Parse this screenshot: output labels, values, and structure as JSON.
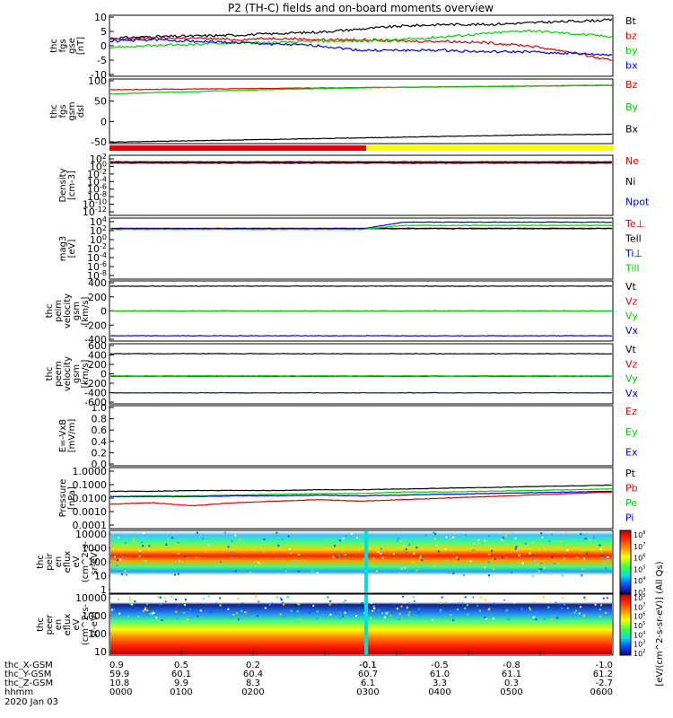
{
  "title": "P2 (TH-C) fields and on-board moments overview",
  "colors": {
    "black": "#000000",
    "red": "#e00000",
    "green": "#00d000",
    "blue": "#0000e0",
    "yellow": "#ffff00"
  },
  "chart_data": [
    {
      "type": "line",
      "ylabel": [
        "thc",
        "fgs",
        "gse",
        "[nT]"
      ],
      "ylim": [
        -10,
        10
      ],
      "yticks": [
        "-10",
        "-5",
        "0",
        "5",
        "10"
      ],
      "series": [
        {
          "name": "Bt",
          "color": "black",
          "values": [
            2.5,
            3.0,
            3.2,
            3.5,
            4.0,
            4.5,
            5.5,
            6.5,
            7.0,
            7.0,
            7.5,
            8.0,
            8.5
          ]
        },
        {
          "name": "bz",
          "color": "red",
          "values": [
            2.0,
            2.5,
            2.5,
            2.0,
            2.5,
            2.0,
            2.0,
            1.5,
            1.5,
            1.0,
            0.0,
            -2.0,
            -5.0
          ]
        },
        {
          "name": "by",
          "color": "green",
          "values": [
            -0.5,
            0.0,
            0.5,
            1.0,
            1.0,
            1.5,
            1.5,
            2.0,
            3.0,
            4.0,
            5.0,
            4.0,
            3.0
          ]
        },
        {
          "name": "bx",
          "color": "blue",
          "values": [
            1.5,
            2.0,
            1.5,
            1.0,
            0.5,
            0.0,
            -1.5,
            -1.5,
            -1.5,
            -2.0,
            -2.0,
            -2.5,
            -3.0
          ]
        }
      ]
    },
    {
      "type": "line",
      "ylabel": [
        "thc",
        "fgs",
        "gsm",
        "dsl"
      ],
      "ylim": [
        -70,
        110
      ],
      "yticks": [
        "-50",
        "0",
        "50",
        "100"
      ],
      "series": [
        {
          "name": "Bz",
          "color": "red",
          "values": [
            80,
            81,
            82,
            83,
            84,
            85,
            86,
            87,
            88,
            89,
            90,
            91,
            92
          ]
        },
        {
          "name": "By",
          "color": "green",
          "values": [
            68,
            72,
            75,
            78,
            81,
            83,
            85,
            87,
            88,
            89,
            90,
            92,
            93
          ]
        },
        {
          "name": "Bx",
          "color": "black",
          "values": [
            -66,
            -64,
            -62,
            -60,
            -58,
            -56,
            -54,
            -52,
            -50,
            -48,
            -46,
            -45,
            -44
          ]
        }
      ]
    },
    {
      "type": "line",
      "log": true,
      "ylabel": [
        "Density",
        "[cm-3]"
      ],
      "ylim": [
        -14,
        2
      ],
      "yticks": [
        "10^2",
        "10^0",
        "10^-2",
        "10^-4",
        "10^-6",
        "10^-8",
        "10^-10",
        "10^-12"
      ],
      "series": [
        {
          "name": "Ne",
          "color": "red",
          "values": [
            0.3,
            0.3,
            0.3,
            0.3,
            0.3,
            0.3,
            0.3,
            0.3,
            0.3,
            0.3,
            0.3,
            0.3,
            0.3
          ]
        },
        {
          "name": "Ni",
          "color": "black",
          "values": [
            0.1,
            0.1,
            0.1,
            0.1,
            0.1,
            0.1,
            0.1,
            0.1,
            0.1,
            0.1,
            0.1,
            0.1,
            0.1
          ]
        },
        {
          "name": "Npot",
          "color": "blue",
          "values": [
            -0.1,
            -0.1,
            -0.1,
            -0.1,
            -0.1,
            -0.1,
            -0.1,
            -0.1,
            -0.1,
            -0.1,
            -0.1,
            -0.1,
            -0.1
          ]
        }
      ]
    },
    {
      "type": "line",
      "log": true,
      "ylabel": [
        "mag3",
        "[eV]"
      ],
      "ylim": [
        -11,
        4
      ],
      "yticks": [
        "10^4",
        "10^2",
        "10^0",
        "10^-2",
        "10^-4",
        "10^-6",
        "10^-8"
      ],
      "series": [
        {
          "name": "Te⊥",
          "color": "red",
          "values": [
            1.5,
            1.5,
            1.5,
            1.5,
            1.5,
            1.5,
            1.5,
            1.5,
            1.5,
            1.5,
            1.5,
            1.5,
            1.5
          ]
        },
        {
          "name": "Tell",
          "color": "black",
          "values": [
            1.4,
            1.4,
            1.4,
            1.4,
            1.4,
            1.4,
            1.4,
            1.4,
            1.4,
            1.4,
            1.4,
            1.4,
            1.4
          ]
        },
        {
          "name": "Ti⊥",
          "color": "blue",
          "values": [
            1.3,
            1.3,
            1.3,
            1.3,
            1.3,
            1.3,
            1.3,
            3.0,
            3.0,
            3.0,
            3.0,
            3.0,
            3.0
          ]
        },
        {
          "name": "Till",
          "color": "green",
          "values": [
            1.2,
            1.2,
            1.2,
            1.2,
            1.2,
            1.2,
            1.2,
            2.2,
            2.2,
            2.2,
            2.2,
            2.2,
            2.2
          ]
        }
      ]
    },
    {
      "type": "line",
      "ylabel": [
        "thc",
        "peim",
        "velocity",
        "gsm",
        "[km/s]"
      ],
      "ylim": [
        -400,
        400
      ],
      "yticks": [
        "-400",
        "-200",
        "0",
        "200",
        "400"
      ],
      "series": [
        {
          "name": "Vt",
          "color": "black",
          "values": [
            330,
            330,
            330,
            330,
            330,
            330,
            330,
            330,
            330,
            330,
            330,
            330,
            330
          ]
        },
        {
          "name": "Vz",
          "color": "red",
          "values": [
            0,
            0,
            0,
            0,
            0,
            0,
            0,
            0,
            0,
            0,
            0,
            0,
            0
          ]
        },
        {
          "name": "Vy",
          "color": "green",
          "values": [
            0,
            0,
            0,
            0,
            0,
            0,
            0,
            0,
            0,
            0,
            0,
            0,
            0
          ]
        },
        {
          "name": "Vx",
          "color": "blue",
          "values": [
            -330,
            -330,
            -330,
            -330,
            -330,
            -330,
            -330,
            -330,
            -330,
            -330,
            -330,
            -330,
            -330
          ]
        }
      ]
    },
    {
      "type": "line",
      "ylabel": [
        "thc",
        "peem",
        "velocity",
        "gsm",
        "[km/s]"
      ],
      "ylim": [
        -600,
        600
      ],
      "yticks": [
        "-600",
        "-400",
        "-200",
        "0",
        "200",
        "400",
        "600"
      ],
      "series": [
        {
          "name": "Vt",
          "color": "black",
          "values": [
            400,
            400,
            400,
            400,
            400,
            400,
            400,
            400,
            400,
            400,
            400,
            400,
            400
          ]
        },
        {
          "name": "Vz",
          "color": "red",
          "values": [
            -50,
            -50,
            -50,
            -50,
            -50,
            -50,
            -50,
            -50,
            -50,
            -50,
            -50,
            -50,
            -50
          ]
        },
        {
          "name": "Vy",
          "color": "green",
          "values": [
            -40,
            -40,
            -40,
            -40,
            -40,
            -40,
            -40,
            -40,
            -40,
            -40,
            -40,
            -40,
            -40
          ]
        },
        {
          "name": "Vx",
          "color": "blue",
          "values": [
            -380,
            -380,
            -380,
            -380,
            -380,
            -380,
            -380,
            -380,
            -380,
            -380,
            -380,
            -380,
            -380
          ]
        }
      ]
    },
    {
      "type": "line",
      "ylabel": [
        "E=-VxB",
        "[mV/m]"
      ],
      "ylim": [
        0,
        1
      ],
      "yticks": [
        "0.0",
        "0.2",
        "0.4",
        "0.6",
        "0.8",
        "1.0"
      ],
      "series": [
        {
          "name": "Ez",
          "color": "red",
          "values": []
        },
        {
          "name": "Ey",
          "color": "green",
          "values": []
        },
        {
          "name": "Ex",
          "color": "blue",
          "values": []
        }
      ]
    },
    {
      "type": "line",
      "log": true,
      "ylabel": [
        "Pressure",
        "[nPa]"
      ],
      "ylim": [
        -4,
        0
      ],
      "yticks": [
        "1.0000",
        "0.1000",
        "0.0100",
        "0.0010",
        "0.0001"
      ],
      "series": [
        {
          "name": "Pt",
          "color": "black",
          "values": [
            -1.55,
            -1.55,
            -1.5,
            -1.5,
            -1.5,
            -1.45,
            -1.45,
            -1.4,
            -1.35,
            -1.3,
            -1.25,
            -1.2,
            -1.15
          ]
        },
        {
          "name": "Pb",
          "color": "red",
          "values": [
            -2.4,
            -2.3,
            -2.5,
            -2.3,
            -2.2,
            -2.1,
            -2.2,
            -2.1,
            -2.0,
            -1.9,
            -1.8,
            -1.7,
            -1.6
          ]
        },
        {
          "name": "Pe",
          "color": "green",
          "values": [
            -1.9,
            -1.85,
            -1.85,
            -1.8,
            -1.75,
            -1.7,
            -1.7,
            -1.6,
            -1.6,
            -1.55,
            -1.5,
            -1.45,
            -1.4
          ]
        },
        {
          "name": "Pi",
          "color": "blue",
          "values": [
            -1.9,
            -1.9,
            -1.9,
            -1.85,
            -1.85,
            -1.8,
            -1.85,
            -1.8,
            -1.75,
            -1.7,
            -1.65,
            -1.6,
            -1.55
          ]
        }
      ]
    },
    {
      "type": "heatmap",
      "ylabel": [
        "thc",
        "peir",
        "en",
        "eflux",
        "eV",
        "(cm^2-s-",
        "sr-eV)"
      ],
      "yticks": [
        "10000",
        "1000",
        "100",
        "10",
        "1"
      ]
    },
    {
      "type": "heatmap",
      "ylabel": [
        "thc",
        "peer",
        "en",
        "eflux",
        "eV",
        "(cm^2-s-",
        "sr-eV)"
      ],
      "yticks": [
        "10000",
        "1000",
        "100",
        "10"
      ]
    }
  ],
  "colorbar": {
    "label": "[eV/(cm^2-s-sr-eV)] (All Qs)",
    "ticks_top": [
      "10^8",
      "10^7",
      "10^6",
      "10^5",
      "10^4",
      "10^3"
    ],
    "ticks_bottom": [
      "10^8",
      "10^7",
      "10^6",
      "10^5",
      "10^4",
      "10^3",
      "10^2"
    ]
  },
  "xaxis": {
    "rows": [
      {
        "label": "thc_X-GSM",
        "values": [
          "0.9",
          "0.5",
          "0.2",
          "-0.1",
          "-0.1",
          "-0.5",
          "-0.8",
          "-1.0"
        ]
      },
      {
        "label": "thc_Y-GSM",
        "values": [
          "59.9",
          "60.1",
          "60.4",
          "60.7",
          "",
          "61.0",
          "61.1",
          "61.2"
        ]
      },
      {
        "label": "thc_Z-GSM",
        "values": [
          "10.8",
          "9.9",
          "8.3",
          "6.1",
          "",
          "3.3",
          "0.3",
          "-2.7"
        ]
      },
      {
        "label": "hhmm",
        "values": [
          "0000",
          "0100",
          "0200",
          "0300",
          "",
          "0400",
          "0500",
          "0600"
        ]
      }
    ],
    "date": "2020 Jan 03"
  }
}
